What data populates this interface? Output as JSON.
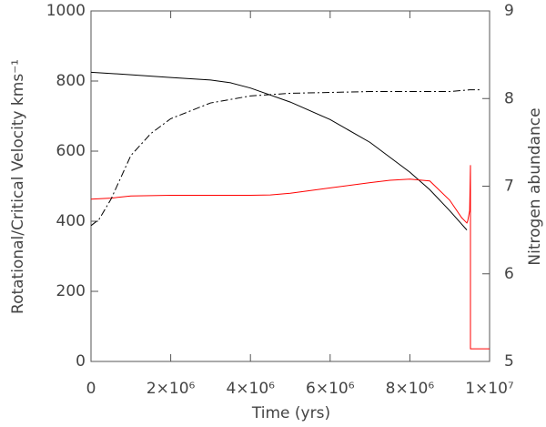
{
  "chart_data": {
    "type": "line",
    "xlabel": "Time (yrs)",
    "ylabel": "Rotational/Critical Velocity kms⁻¹",
    "y2label": "Nitrogen abundance",
    "xlim": [
      0,
      10000000
    ],
    "xticks": [
      0,
      {
        "value": 2000000,
        "label": "2×10⁶"
      },
      {
        "value": 4000000,
        "label": "4×10⁶"
      },
      {
        "value": 6000000,
        "label": "6×10⁶"
      },
      {
        "value": 8000000,
        "label": "8×10⁶"
      },
      {
        "value": 10000000,
        "label": "1×10⁷"
      }
    ],
    "ylim": [
      0,
      1000
    ],
    "yticks": [
      0,
      200,
      400,
      600,
      800,
      1000
    ],
    "y2lim": [
      5,
      9
    ],
    "y2ticks": [
      5,
      6,
      7,
      8,
      9
    ],
    "series": [
      {
        "color": "#000000",
        "dash": "solid",
        "x": [
          0,
          1000000,
          2000000,
          3000000,
          3500000,
          4000000,
          5000000,
          6000000,
          7000000,
          8000000,
          8500000,
          9000000,
          9430000
        ],
        "values": [
          825,
          818,
          810,
          803,
          795,
          780,
          740,
          690,
          625,
          540,
          490,
          430,
          375
        ]
      },
      {
        "color": "#ff0000",
        "dash": "solid",
        "x": [
          0,
          500000,
          1000000,
          2000000,
          3000000,
          4000000,
          4500000,
          5000000,
          6000000,
          7000000,
          7500000,
          8000000,
          8500000,
          9000000,
          9300000,
          9430000,
          9450000,
          9500000,
          9520000,
          9520000,
          9520000,
          10000000
        ],
        "values": [
          463,
          466,
          472,
          474,
          474,
          474,
          475,
          480,
          495,
          510,
          517,
          520,
          515,
          460,
          410,
          395,
          400,
          430,
          560,
          300,
          36,
          36
        ]
      },
      {
        "color": "#000000",
        "dash": "dashdot",
        "axis": "y2",
        "x": [
          0,
          200000,
          500000,
          1000000,
          1500000,
          2000000,
          3000000,
          4000000,
          5000000,
          6000000,
          7000000,
          8000000,
          9000000,
          9500000,
          9800000
        ],
        "values": [
          6.55,
          6.62,
          6.85,
          7.35,
          7.6,
          7.77,
          7.95,
          8.03,
          8.06,
          8.07,
          8.08,
          8.08,
          8.08,
          8.1,
          8.1
        ]
      }
    ]
  }
}
